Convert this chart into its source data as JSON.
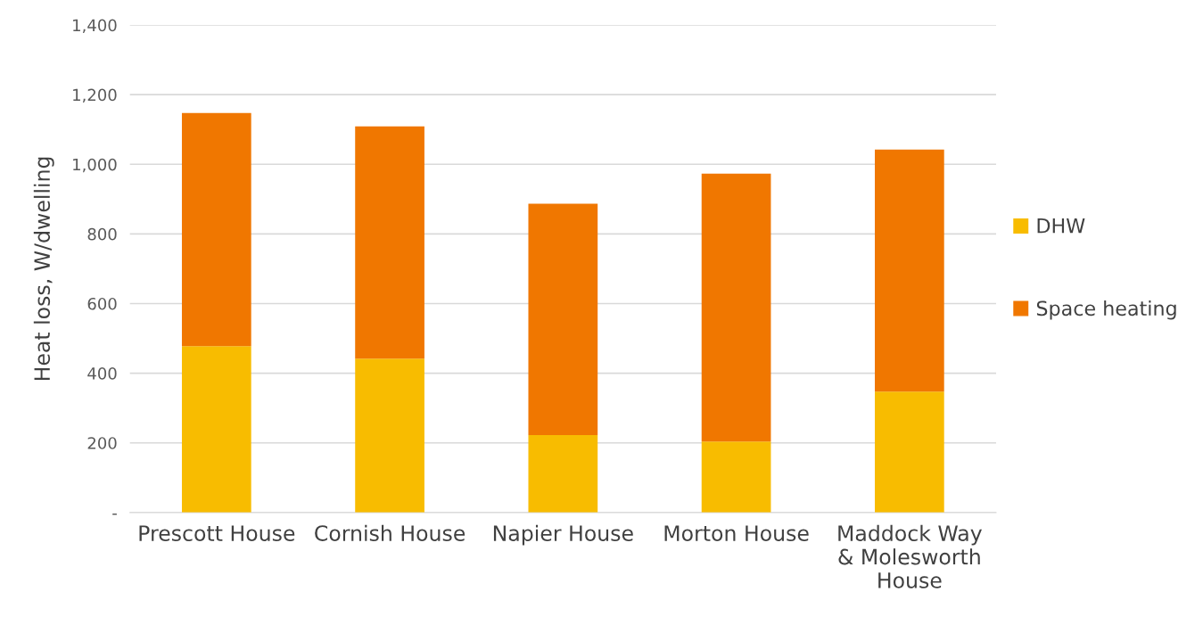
{
  "chart_data": {
    "type": "bar",
    "stacked": true,
    "ylabel": "Heat loss, W/dwelling",
    "categories": [
      "Prescott House",
      "Cornish House",
      "Napier House",
      "Morton House",
      "Maddock Way\n& Molesworth\nHouse"
    ],
    "series": [
      {
        "name": "DHW",
        "color": "#f8bc00",
        "values": [
          478,
          442,
          222,
          204,
          347
        ]
      },
      {
        "name": "Space heating",
        "color": "#f07700",
        "values": [
          669,
          667,
          665,
          769,
          695
        ]
      }
    ],
    "ylim": [
      0,
      1400
    ],
    "yticks": [
      {
        "value": 0,
        "label": "-"
      },
      {
        "value": 200,
        "label": "200"
      },
      {
        "value": 400,
        "label": "400"
      },
      {
        "value": 600,
        "label": "600"
      },
      {
        "value": 800,
        "label": "800"
      },
      {
        "value": 1000,
        "label": "1,000"
      },
      {
        "value": 1200,
        "label": "1,200"
      },
      {
        "value": 1400,
        "label": "1,400"
      }
    ],
    "grid": "y",
    "legend": "right"
  }
}
